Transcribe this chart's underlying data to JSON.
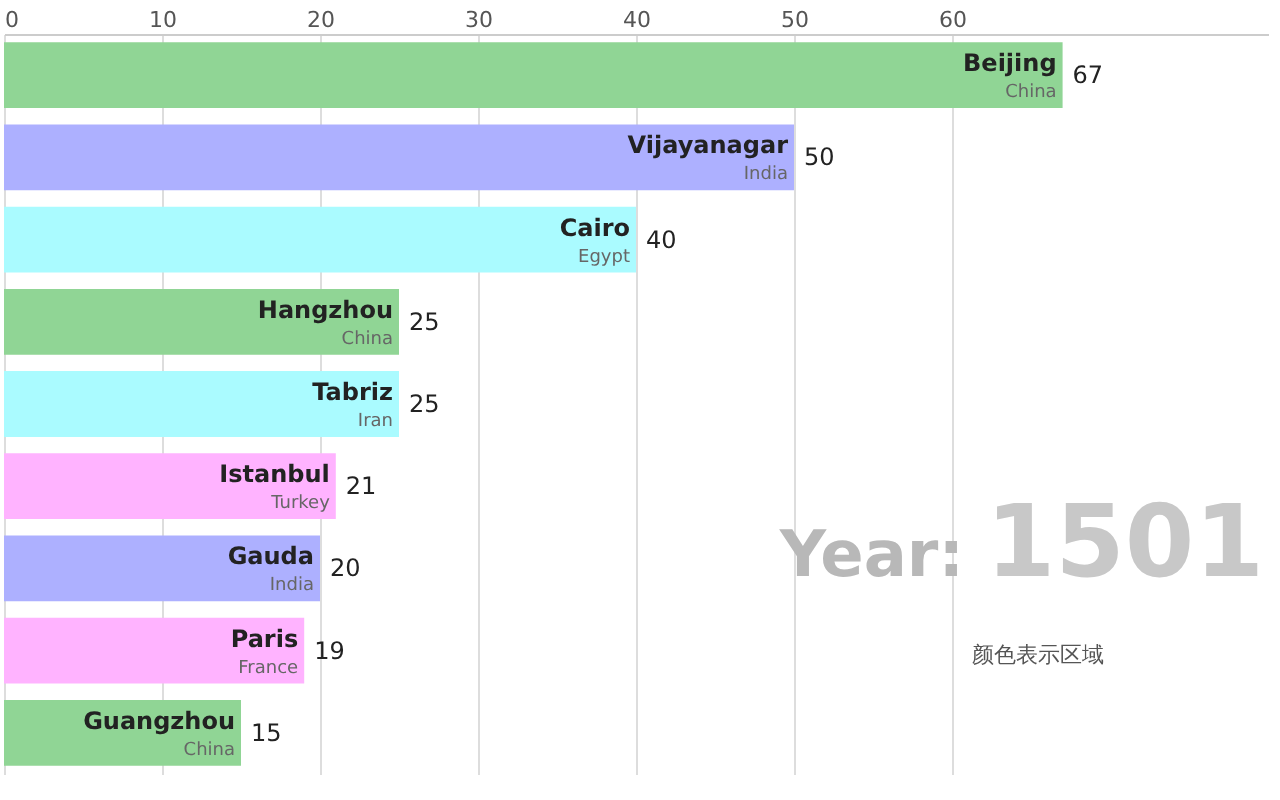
{
  "chart_data": {
    "type": "bar",
    "orientation": "horizontal",
    "categories": [
      "Beijing",
      "Vijayanagar",
      "Cairo",
      "Hangzhou",
      "Tabriz",
      "Istanbul",
      "Gauda",
      "Paris",
      "Guangzhou"
    ],
    "values": [
      67,
      50,
      40,
      25,
      25,
      21,
      20,
      19,
      15
    ],
    "colors": [
      "#90d595",
      "#adb0ff",
      "#aafbff",
      "#90d595",
      "#aafbff",
      "#ffb3ff",
      "#adb0ff",
      "#ffb3ff",
      "#90d595"
    ],
    "xlim": [
      0,
      80
    ],
    "xticks": [
      0,
      10,
      20,
      30,
      40,
      50,
      60
    ],
    "grid": "x",
    "data_labels": true,
    "annotations": [
      {
        "text": "China",
        "x": 67,
        "y": "Beijing"
      },
      {
        "text": "India",
        "x": 50,
        "y": "Vijayanagar"
      },
      {
        "text": "Egypt",
        "x": 40,
        "y": "Cairo"
      },
      {
        "text": "China",
        "x": 25,
        "y": "Hangzhou"
      },
      {
        "text": "Iran",
        "x": 25,
        "y": "Tabriz"
      },
      {
        "text": "Turkey",
        "x": 21,
        "y": "Istanbul"
      },
      {
        "text": "India",
        "x": 20,
        "y": "Gauda"
      },
      {
        "text": "France",
        "x": 19,
        "y": "Paris"
      },
      {
        "text": "China",
        "x": 15,
        "y": "Guangzhou"
      },
      "Year:",
      "1501",
      "颜色表示区域"
    ]
  }
}
